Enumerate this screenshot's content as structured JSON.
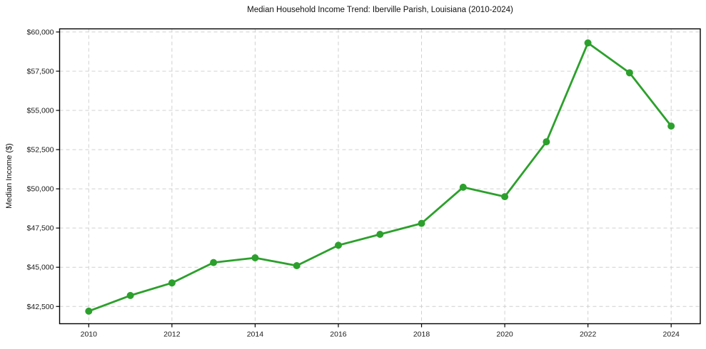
{
  "figure": {
    "background": "#ffffff",
    "text_color": "#1a1a1a"
  },
  "chart_data": {
    "type": "line",
    "title": "Median Household Income Trend: Iberville Parish, Louisiana (2010-2024)",
    "xlabel": "",
    "ylabel": "Median Income ($)",
    "x": [
      2010,
      2011,
      2012,
      2013,
      2014,
      2015,
      2016,
      2017,
      2018,
      2019,
      2020,
      2021,
      2022,
      2023,
      2024
    ],
    "series": [
      {
        "name": "Median Household Income",
        "values": [
          42200,
          43200,
          44000,
          45300,
          45600,
          45100,
          46400,
          47100,
          47800,
          50100,
          49500,
          53000,
          59300,
          57400,
          54000
        ],
        "color": "#2ca02c",
        "marker": "circle",
        "line_width": 2.8,
        "marker_radius": 5
      }
    ],
    "xlim": [
      2009.3,
      2024.7
    ],
    "ylim": [
      41400,
      60200
    ],
    "x_ticks": [
      2010,
      2012,
      2014,
      2016,
      2018,
      2020,
      2022,
      2024
    ],
    "x_tick_labels": [
      "2010",
      "2012",
      "2014",
      "2016",
      "2018",
      "2020",
      "2022",
      "2024"
    ],
    "y_ticks": [
      42500,
      45000,
      47500,
      50000,
      52500,
      55000,
      57500,
      60000
    ],
    "y_tick_labels": [
      "$42,500",
      "$45,000",
      "$47,500",
      "$50,000",
      "$52,500",
      "$55,000",
      "$57,500",
      "$60,000"
    ],
    "grid": true,
    "grid_color": "#d0d0d0",
    "grid_dash": "5,4",
    "legend": false,
    "legend_position": "none",
    "spine_color": "#000000"
  }
}
